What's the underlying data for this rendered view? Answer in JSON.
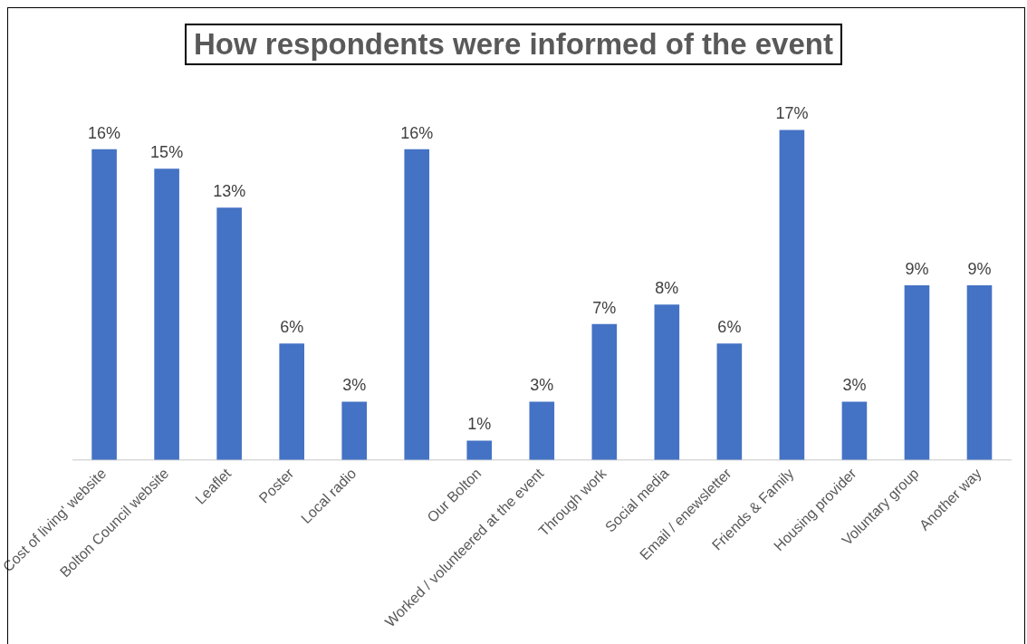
{
  "chart_data": {
    "type": "bar",
    "title": "How respondents were informed of the event",
    "categories": [
      "Cost of living' website",
      "Bolton Council website",
      "Leaflet",
      "Poster",
      "Local radio",
      null,
      "Our Bolton",
      "Worked / volunteered at the event",
      "Through work",
      "Social media",
      "Email / enewsletter",
      "Friends & Family",
      "Housing provider",
      "Voluntary group",
      "Another way"
    ],
    "values": [
      16,
      15,
      13,
      6,
      3,
      16,
      1,
      3,
      7,
      8,
      6,
      17,
      3,
      9,
      9
    ],
    "value_labels": [
      "16%",
      "15%",
      "13%",
      "6%",
      "3%",
      "16%",
      "1%",
      "3%",
      "7%",
      "8%",
      "6%",
      "17%",
      "3%",
      "9%",
      "9%"
    ],
    "color": "#4472c4",
    "grid": false,
    "legend": false
  }
}
